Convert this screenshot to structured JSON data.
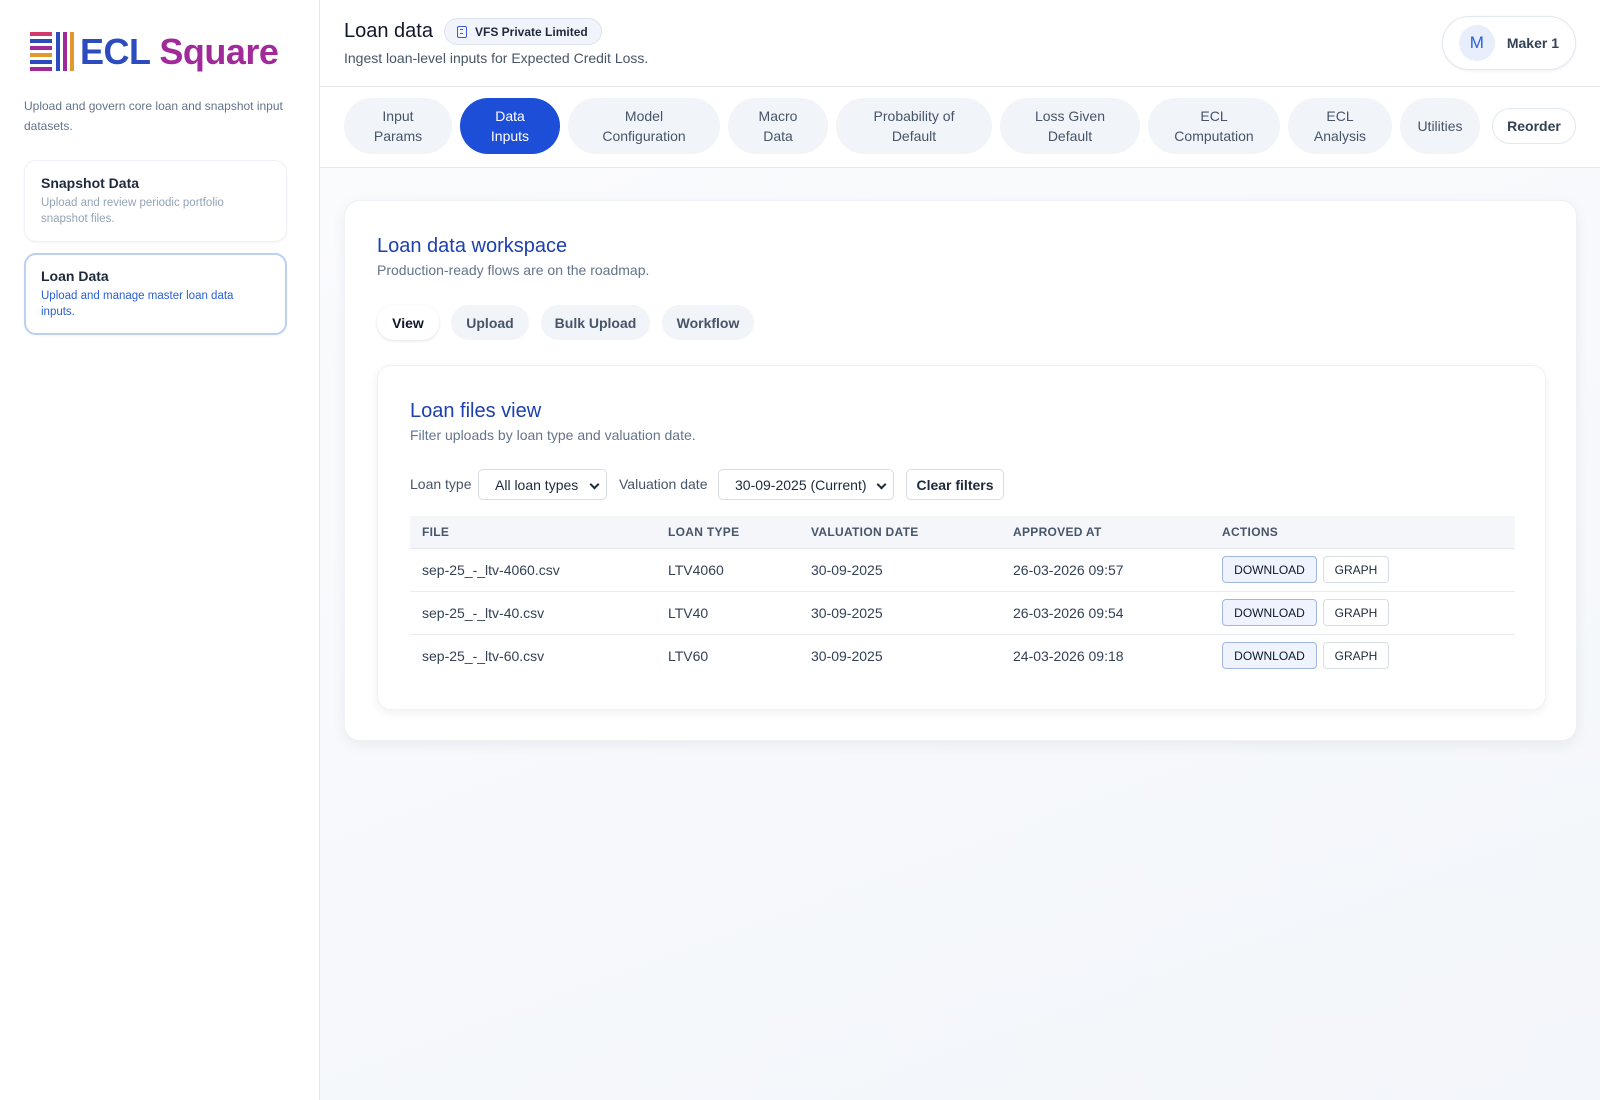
{
  "brand": {
    "ecl": "ECL",
    "square": "Square"
  },
  "sidebar": {
    "description": "Upload and govern core loan and snapshot input datasets.",
    "items": [
      {
        "title": "Snapshot Data",
        "desc": "Upload and review periodic portfolio snapshot files."
      },
      {
        "title": "Loan Data",
        "desc": "Upload and manage master loan data inputs."
      }
    ]
  },
  "header": {
    "title": "Loan data",
    "org": "VFS Private Limited",
    "subtitle": "Ingest loan-level inputs for Expected Credit Loss.",
    "user": {
      "initial": "M",
      "name": "Maker 1"
    }
  },
  "nav": {
    "tabs": [
      {
        "l1": "Input",
        "l2": "Params"
      },
      {
        "l1": "Data",
        "l2": "Inputs"
      },
      {
        "l1": "Model",
        "l2": "Configuration"
      },
      {
        "l1": "Macro",
        "l2": "Data"
      },
      {
        "l1": "Probability of",
        "l2": "Default"
      },
      {
        "l1": "Loss Given",
        "l2": "Default"
      },
      {
        "l1": "ECL",
        "l2": "Computation"
      },
      {
        "l1": "ECL",
        "l2": "Analysis"
      },
      {
        "l1": "Utilities",
        "l2": ""
      }
    ],
    "reorder": "Reorder"
  },
  "workspace": {
    "title": "Loan data workspace",
    "subtitle": "Production-ready flows are on the roadmap.",
    "subtabs": [
      "View",
      "Upload",
      "Bulk Upload",
      "Workflow"
    ]
  },
  "files": {
    "title": "Loan files view",
    "subtitle": "Filter uploads by loan type and valuation date.",
    "filters": {
      "loan_type_label": "Loan type",
      "loan_type_value": "All loan types",
      "valuation_label": "Valuation date",
      "valuation_value": "30-09-2025 (Current)",
      "clear": "Clear filters"
    },
    "columns": [
      "FILE",
      "LOAN TYPE",
      "VALUATION DATE",
      "APPROVED AT",
      "ACTIONS"
    ],
    "rows": [
      {
        "file": "sep-25_-_ltv-4060.csv",
        "type": "LTV4060",
        "date": "30-09-2025",
        "approved": "26-03-2026 09:57"
      },
      {
        "file": "sep-25_-_ltv-40.csv",
        "type": "LTV40",
        "date": "30-09-2025",
        "approved": "26-03-2026 09:54"
      },
      {
        "file": "sep-25_-_ltv-60.csv",
        "type": "LTV60",
        "date": "30-09-2025",
        "approved": "24-03-2026 09:18"
      }
    ],
    "actions": {
      "download": "DOWNLOAD",
      "graph": "GRAPH"
    }
  }
}
